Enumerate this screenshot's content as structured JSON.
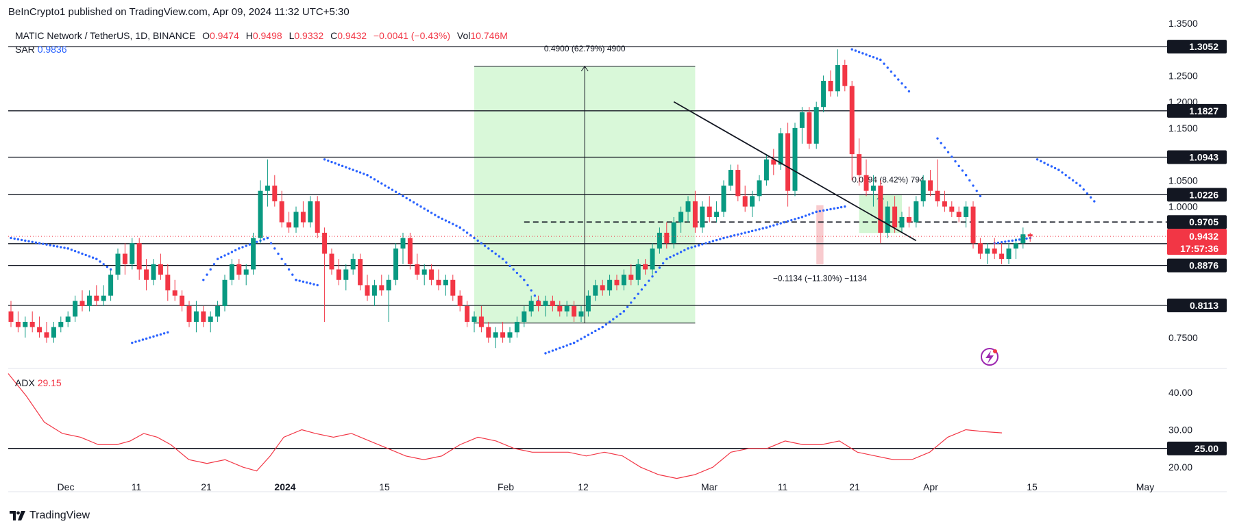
{
  "header": {
    "published": "BeInCrypto1 published on TradingView.com, Apr 09, 2024 11:32 UTC+5:30",
    "symbol": "MATIC Network / TetherUS, 1D, BINANCE",
    "o_label": "O",
    "o": "0.9474",
    "h_label": "H",
    "h": "0.9498",
    "l_label": "L",
    "l": "0.9332",
    "c_label": "C",
    "c": "0.9432",
    "change": "−0.0041 (−0.43%)",
    "vol_label": "Vol",
    "vol": "10.746M",
    "sar_label": "SAR",
    "sar_value": "0.9836",
    "adx_label": "ADX",
    "adx_value": "29.15"
  },
  "footer": {
    "brand": "TradingView"
  },
  "colors": {
    "up": "#089981",
    "down": "#f23645",
    "sar": "#2962ff",
    "adx": "#f23645",
    "zone": "#ccf5cc",
    "current": "#f23645"
  },
  "chart_data": {
    "type": "candlestick",
    "x_ticks": [
      "Dec",
      "11",
      "21",
      "2024",
      "15",
      "Feb",
      "12",
      "Mar",
      "11",
      "21",
      "Apr",
      "15",
      "May"
    ],
    "y_ticks": [
      "1.3500",
      "1.2500",
      "1.2000",
      "1.1500",
      "1.0500",
      "1.0000",
      "0.7500"
    ],
    "ylim": [
      0.695,
      1.355
    ],
    "levels": [
      {
        "value": 1.3052,
        "label": "1.3052"
      },
      {
        "value": 1.1827,
        "label": "1.1827"
      },
      {
        "value": 1.0943,
        "label": "1.0943"
      },
      {
        "value": 1.0226,
        "label": "1.0226"
      },
      {
        "value": 0.9705,
        "label": "0.9705",
        "dashed": true
      },
      {
        "value": 0.9292,
        "label": "0.9292"
      },
      {
        "value": 0.8876,
        "label": "0.8876"
      },
      {
        "value": 0.8113,
        "label": "0.8113"
      }
    ],
    "current_price": {
      "value": 0.9432,
      "label": "0.9432",
      "countdown": "17:57:36"
    },
    "annotations": {
      "rally": "0.4900 (62.79%) 4900",
      "drop": "−0.1134 (−11.30%) −1134",
      "target": "0.0794 (8.42%) 794"
    },
    "candles": [
      [
        0.8,
        0.82,
        0.77,
        0.78
      ],
      [
        0.78,
        0.8,
        0.76,
        0.77
      ],
      [
        0.77,
        0.79,
        0.75,
        0.78
      ],
      [
        0.78,
        0.8,
        0.76,
        0.77
      ],
      [
        0.77,
        0.79,
        0.75,
        0.76
      ],
      [
        0.76,
        0.78,
        0.74,
        0.75
      ],
      [
        0.75,
        0.78,
        0.74,
        0.77
      ],
      [
        0.77,
        0.79,
        0.76,
        0.78
      ],
      [
        0.78,
        0.8,
        0.77,
        0.79
      ],
      [
        0.79,
        0.83,
        0.78,
        0.82
      ],
      [
        0.82,
        0.84,
        0.8,
        0.81
      ],
      [
        0.81,
        0.84,
        0.8,
        0.83
      ],
      [
        0.83,
        0.85,
        0.81,
        0.82
      ],
      [
        0.82,
        0.85,
        0.81,
        0.83
      ],
      [
        0.83,
        0.88,
        0.82,
        0.87
      ],
      [
        0.87,
        0.92,
        0.86,
        0.91
      ],
      [
        0.91,
        0.93,
        0.87,
        0.89
      ],
      [
        0.89,
        0.94,
        0.88,
        0.93
      ],
      [
        0.93,
        0.94,
        0.86,
        0.88
      ],
      [
        0.88,
        0.9,
        0.84,
        0.86
      ],
      [
        0.86,
        0.9,
        0.85,
        0.89
      ],
      [
        0.89,
        0.91,
        0.86,
        0.87
      ],
      [
        0.87,
        0.89,
        0.82,
        0.84
      ],
      [
        0.84,
        0.86,
        0.82,
        0.83
      ],
      [
        0.83,
        0.84,
        0.8,
        0.81
      ],
      [
        0.81,
        0.82,
        0.77,
        0.78
      ],
      [
        0.78,
        0.82,
        0.76,
        0.8
      ],
      [
        0.8,
        0.81,
        0.77,
        0.78
      ],
      [
        0.78,
        0.8,
        0.76,
        0.79
      ],
      [
        0.79,
        0.82,
        0.78,
        0.81
      ],
      [
        0.81,
        0.87,
        0.8,
        0.86
      ],
      [
        0.86,
        0.9,
        0.85,
        0.89
      ],
      [
        0.89,
        0.9,
        0.86,
        0.87
      ],
      [
        0.87,
        0.89,
        0.85,
        0.88
      ],
      [
        0.88,
        0.95,
        0.87,
        0.94
      ],
      [
        0.94,
        1.05,
        0.93,
        1.03
      ],
      [
        1.03,
        1.09,
        1.0,
        1.04
      ],
      [
        1.04,
        1.06,
        1.0,
        1.01
      ],
      [
        1.01,
        1.03,
        0.96,
        0.97
      ],
      [
        0.97,
        0.99,
        0.95,
        0.96
      ],
      [
        0.96,
        1.0,
        0.95,
        0.99
      ],
      [
        0.99,
        1.01,
        0.96,
        0.97
      ],
      [
        0.97,
        1.02,
        0.96,
        1.01
      ],
      [
        1.01,
        1.02,
        0.94,
        0.95
      ],
      [
        0.95,
        0.96,
        0.78,
        0.91
      ],
      [
        0.91,
        0.92,
        0.87,
        0.88
      ],
      [
        0.88,
        0.9,
        0.85,
        0.86
      ],
      [
        0.86,
        0.89,
        0.84,
        0.88
      ],
      [
        0.88,
        0.91,
        0.87,
        0.9
      ],
      [
        0.9,
        0.91,
        0.84,
        0.85
      ],
      [
        0.85,
        0.87,
        0.82,
        0.83
      ],
      [
        0.83,
        0.86,
        0.81,
        0.85
      ],
      [
        0.85,
        0.87,
        0.83,
        0.84
      ],
      [
        0.84,
        0.87,
        0.78,
        0.86
      ],
      [
        0.86,
        0.93,
        0.85,
        0.92
      ],
      [
        0.92,
        0.95,
        0.89,
        0.94
      ],
      [
        0.94,
        0.95,
        0.88,
        0.89
      ],
      [
        0.89,
        0.91,
        0.86,
        0.87
      ],
      [
        0.87,
        0.89,
        0.85,
        0.88
      ],
      [
        0.88,
        0.89,
        0.85,
        0.86
      ],
      [
        0.86,
        0.88,
        0.84,
        0.85
      ],
      [
        0.85,
        0.87,
        0.83,
        0.86
      ],
      [
        0.86,
        0.87,
        0.82,
        0.83
      ],
      [
        0.83,
        0.84,
        0.8,
        0.81
      ],
      [
        0.81,
        0.82,
        0.77,
        0.78
      ],
      [
        0.78,
        0.8,
        0.76,
        0.79
      ],
      [
        0.79,
        0.81,
        0.76,
        0.77
      ],
      [
        0.77,
        0.78,
        0.74,
        0.75
      ],
      [
        0.75,
        0.77,
        0.73,
        0.76
      ],
      [
        0.76,
        0.78,
        0.74,
        0.75
      ],
      [
        0.75,
        0.77,
        0.74,
        0.76
      ],
      [
        0.76,
        0.79,
        0.75,
        0.78
      ],
      [
        0.78,
        0.81,
        0.77,
        0.8
      ],
      [
        0.8,
        0.83,
        0.79,
        0.82
      ],
      [
        0.82,
        0.83,
        0.8,
        0.81
      ],
      [
        0.81,
        0.83,
        0.79,
        0.82
      ],
      [
        0.82,
        0.83,
        0.8,
        0.81
      ],
      [
        0.81,
        0.82,
        0.79,
        0.8
      ],
      [
        0.8,
        0.82,
        0.79,
        0.81
      ],
      [
        0.81,
        0.82,
        0.78,
        0.79
      ],
      [
        0.79,
        0.81,
        0.78,
        0.8
      ],
      [
        0.8,
        0.84,
        0.79,
        0.83
      ],
      [
        0.83,
        0.86,
        0.82,
        0.85
      ],
      [
        0.85,
        0.86,
        0.83,
        0.84
      ],
      [
        0.84,
        0.87,
        0.83,
        0.86
      ],
      [
        0.86,
        0.87,
        0.84,
        0.85
      ],
      [
        0.85,
        0.88,
        0.84,
        0.87
      ],
      [
        0.87,
        0.89,
        0.85,
        0.86
      ],
      [
        0.86,
        0.9,
        0.85,
        0.89
      ],
      [
        0.89,
        0.9,
        0.87,
        0.88
      ],
      [
        0.88,
        0.93,
        0.87,
        0.92
      ],
      [
        0.92,
        0.96,
        0.91,
        0.95
      ],
      [
        0.95,
        0.97,
        0.92,
        0.93
      ],
      [
        0.93,
        0.98,
        0.92,
        0.97
      ],
      [
        0.97,
        1.0,
        0.95,
        0.99
      ],
      [
        0.99,
        1.02,
        0.97,
        1.01
      ],
      [
        1.01,
        1.03,
        0.95,
        0.96
      ],
      [
        0.96,
        1.01,
        0.95,
        1.0
      ],
      [
        1.0,
        1.02,
        0.97,
        0.98
      ],
      [
        0.98,
        1.01,
        0.97,
        0.99
      ],
      [
        0.99,
        1.05,
        0.98,
        1.04
      ],
      [
        1.04,
        1.08,
        1.03,
        1.07
      ],
      [
        1.07,
        1.08,
        1.01,
        1.02
      ],
      [
        1.02,
        1.04,
        0.99,
        1.0
      ],
      [
        1.0,
        1.03,
        0.98,
        1.02
      ],
      [
        1.02,
        1.06,
        1.01,
        1.05
      ],
      [
        1.05,
        1.1,
        1.04,
        1.09
      ],
      [
        1.09,
        1.11,
        1.06,
        1.08
      ],
      [
        1.08,
        1.15,
        1.07,
        1.14
      ],
      [
        1.14,
        1.16,
        1.0,
        1.03
      ],
      [
        1.03,
        1.16,
        1.02,
        1.15
      ],
      [
        1.15,
        1.19,
        1.12,
        1.18
      ],
      [
        1.18,
        1.19,
        1.11,
        1.12
      ],
      [
        1.12,
        1.2,
        1.11,
        1.19
      ],
      [
        1.19,
        1.25,
        1.18,
        1.24
      ],
      [
        1.24,
        1.26,
        1.21,
        1.22
      ],
      [
        1.22,
        1.3,
        1.21,
        1.27
      ],
      [
        1.27,
        1.28,
        1.22,
        1.23
      ],
      [
        1.23,
        1.24,
        1.05,
        1.1
      ],
      [
        1.1,
        1.13,
        1.04,
        1.06
      ],
      [
        1.06,
        1.09,
        1.02,
        1.03
      ],
      [
        1.03,
        1.06,
        1.0,
        1.04
      ],
      [
        1.04,
        1.05,
        0.93,
        0.95
      ],
      [
        0.95,
        1.01,
        0.94,
        1.0
      ],
      [
        1.0,
        1.02,
        0.95,
        0.96
      ],
      [
        0.96,
        0.99,
        0.95,
        0.98
      ],
      [
        0.98,
        1.0,
        0.96,
        0.97
      ],
      [
        0.97,
        1.02,
        0.96,
        1.01
      ],
      [
        1.01,
        1.06,
        1.0,
        1.05
      ],
      [
        1.05,
        1.07,
        1.02,
        1.03
      ],
      [
        1.03,
        1.09,
        1.0,
        1.01
      ],
      [
        1.01,
        1.03,
        0.99,
        1.0
      ],
      [
        1.0,
        1.01,
        0.98,
        0.99
      ],
      [
        0.99,
        1.0,
        0.97,
        0.98
      ],
      [
        0.98,
        1.01,
        0.96,
        1.0
      ],
      [
        1.0,
        1.01,
        0.92,
        0.93
      ],
      [
        0.93,
        0.94,
        0.9,
        0.91
      ],
      [
        0.91,
        0.93,
        0.89,
        0.92
      ],
      [
        0.92,
        0.94,
        0.9,
        0.91
      ],
      [
        0.91,
        0.93,
        0.89,
        0.9
      ],
      [
        0.9,
        0.93,
        0.89,
        0.92
      ],
      [
        0.92,
        0.94,
        0.9,
        0.93
      ],
      [
        0.93,
        0.96,
        0.92,
        0.947
      ],
      [
        0.947,
        0.95,
        0.933,
        0.9432
      ]
    ],
    "sar_series_name": "SAR",
    "sar": [
      [
        0,
        0.94
      ],
      [
        4,
        0.93
      ],
      [
        8,
        0.92
      ],
      [
        12,
        0.9
      ],
      [
        14,
        0.88
      ],
      [
        17,
        0.74
      ],
      [
        22,
        0.76
      ],
      [
        27,
        0.86
      ],
      [
        29,
        0.9
      ],
      [
        32,
        0.92
      ],
      [
        36,
        0.94
      ],
      [
        40,
        0.86
      ],
      [
        43,
        0.85
      ],
      [
        44,
        1.09
      ],
      [
        50,
        1.06
      ],
      [
        55,
        1.02
      ],
      [
        60,
        0.98
      ],
      [
        63,
        0.96
      ],
      [
        66,
        0.93
      ],
      [
        69,
        0.9
      ],
      [
        72,
        0.86
      ],
      [
        74,
        0.82
      ],
      [
        75,
        0.72
      ],
      [
        79,
        0.74
      ],
      [
        83,
        0.77
      ],
      [
        86,
        0.8
      ],
      [
        89,
        0.85
      ],
      [
        92,
        0.9
      ],
      [
        95,
        0.92
      ],
      [
        100,
        0.94
      ],
      [
        106,
        0.96
      ],
      [
        111,
        0.98
      ],
      [
        113,
        0.99
      ],
      [
        117,
        1.0
      ],
      [
        118,
        1.3
      ],
      [
        122,
        1.28
      ],
      [
        126,
        1.22
      ],
      [
        130,
        1.13
      ],
      [
        134,
        1.06
      ],
      [
        136,
        1.02
      ],
      [
        138,
        0.93
      ],
      [
        143,
        0.94
      ],
      [
        144,
        1.09
      ],
      [
        147,
        1.07
      ],
      [
        150,
        1.04
      ],
      [
        152,
        1.01
      ]
    ],
    "adx_series_name": "ADX",
    "adx_ticks": [
      "40.00",
      "30.00",
      "20.00"
    ],
    "adx_level": {
      "value": 25,
      "label": "25.00"
    },
    "adx_ylim": [
      14,
      46
    ],
    "adx": [
      [
        0,
        45
      ],
      [
        4,
        39
      ],
      [
        8,
        32
      ],
      [
        12,
        29
      ],
      [
        16,
        28
      ],
      [
        20,
        26
      ],
      [
        24,
        26
      ],
      [
        27,
        27
      ],
      [
        30,
        29
      ],
      [
        33,
        28
      ],
      [
        36,
        26
      ],
      [
        40,
        22
      ],
      [
        44,
        21
      ],
      [
        48,
        22
      ],
      [
        52,
        20
      ],
      [
        55,
        19
      ],
      [
        58,
        23
      ],
      [
        61,
        28
      ],
      [
        65,
        30
      ],
      [
        68,
        29
      ],
      [
        72,
        28
      ],
      [
        76,
        29
      ],
      [
        80,
        27
      ],
      [
        84,
        25
      ],
      [
        88,
        23
      ],
      [
        92,
        22
      ],
      [
        96,
        23
      ],
      [
        100,
        26
      ],
      [
        104,
        28
      ],
      [
        108,
        27
      ],
      [
        112,
        25
      ],
      [
        116,
        24
      ],
      [
        120,
        24
      ],
      [
        124,
        24
      ],
      [
        128,
        23
      ],
      [
        132,
        24
      ],
      [
        136,
        23
      ],
      [
        140,
        20
      ],
      [
        144,
        18
      ],
      [
        148,
        17
      ],
      [
        152,
        18
      ],
      [
        156,
        20
      ],
      [
        160,
        24
      ],
      [
        164,
        25
      ],
      [
        168,
        25
      ],
      [
        172,
        27
      ],
      [
        176,
        26
      ],
      [
        180,
        26
      ],
      [
        184,
        27
      ],
      [
        188,
        24
      ],
      [
        192,
        23
      ],
      [
        196,
        22
      ],
      [
        200,
        22
      ],
      [
        204,
        24
      ],
      [
        208,
        28
      ],
      [
        212,
        30
      ],
      [
        216,
        29.5
      ],
      [
        220,
        29.15
      ]
    ]
  }
}
